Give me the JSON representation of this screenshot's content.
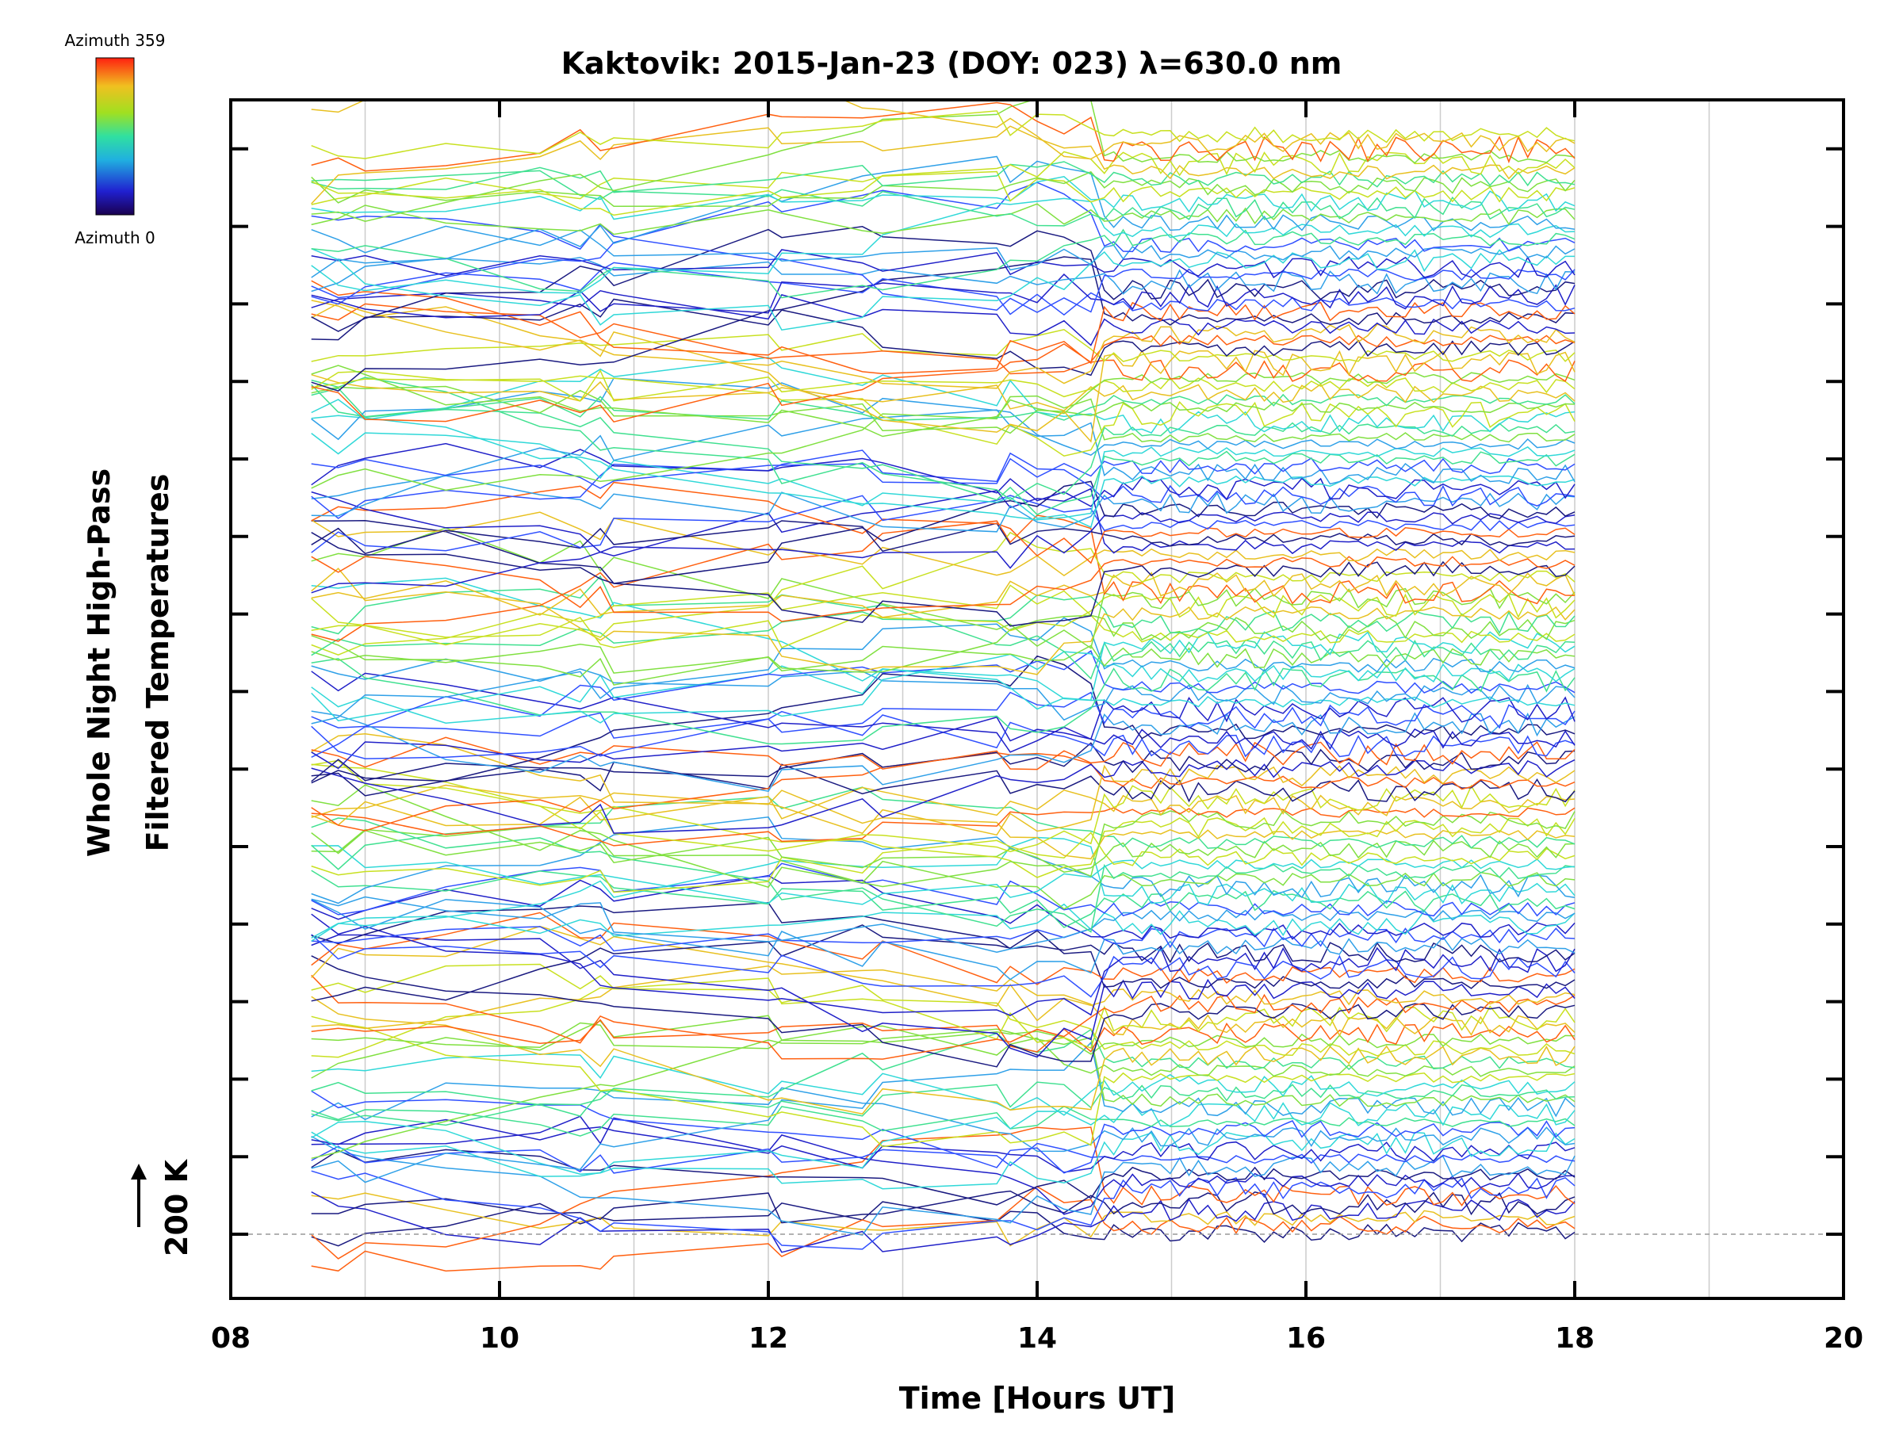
{
  "chart_data": {
    "type": "line",
    "title": "Kaktovik: 2015-Jan-23 (DOY: 023) λ=630.0 nm",
    "xlabel": "Time [Hours UT]",
    "ylabel_line1": "Whole Night High-Pass",
    "ylabel_line2": "Filtered Temperatures",
    "scale_marker": "200 K",
    "xlim": [
      8,
      20
    ],
    "x_ticks": [
      "08",
      "10",
      "12",
      "14",
      "16",
      "18",
      "20"
    ],
    "data_time_range": [
      8.6,
      18.0
    ],
    "grid": "vertical lines every hour",
    "colorbar": {
      "top_label": "Azimuth 359",
      "bottom_label": "Azimuth 0",
      "colormap": "rainbow (purple-blue-cyan-green-yellow-red)"
    },
    "series_description": "Stacked high-pass filtered temperature traces, one per sky zone, colored by azimuth; offset vertically",
    "colors": {
      "palette": [
        "#1a1a80",
        "#2020c8",
        "#3050ff",
        "#2fa0e8",
        "#30d8d8",
        "#40e090",
        "#80e040",
        "#c8e020",
        "#e8c020",
        "#ff6010"
      ]
    }
  }
}
